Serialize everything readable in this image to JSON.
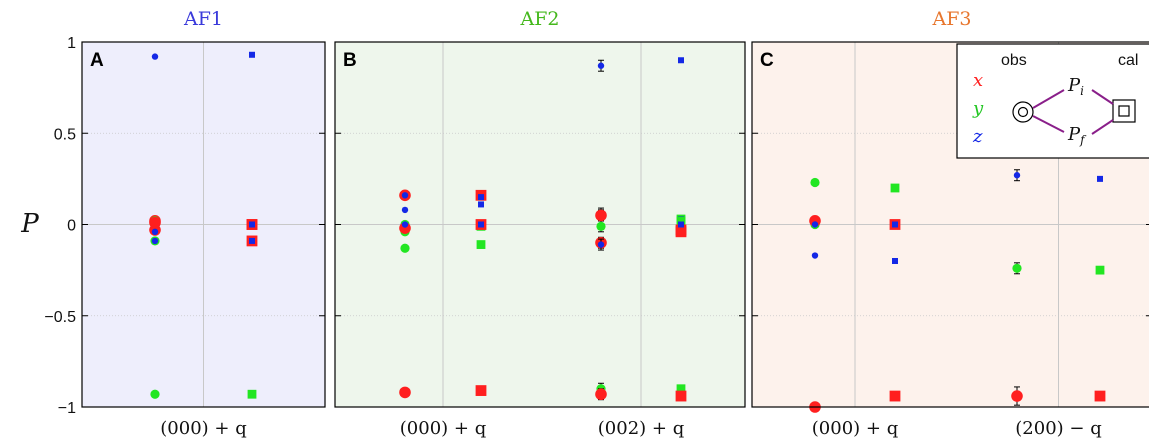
{
  "figure": {
    "ylabel": "P",
    "legend": {
      "obs": "obs",
      "cal": "cal",
      "x": "x",
      "y": "y",
      "z": "z",
      "pi": "P",
      "pi_sub": "i",
      "pf": "P",
      "pf_sub": "f"
    }
  },
  "chart_data": [
    {
      "type": "scatter",
      "panel": "A",
      "title": "AF1",
      "title_color": "#3a3adb",
      "background": "#eeeefc",
      "ylim": [
        -1,
        1
      ],
      "yticks": [
        1,
        0.5,
        0,
        -0.5,
        -1
      ],
      "ytick_labels": [
        "1",
        "0.5",
        "0",
        "−0.5",
        "−1"
      ],
      "groups": [
        {
          "label": "(000) + q",
          "obs": [
            {
              "x": 0.02,
              "y": -0.93,
              "z": 0.92,
              "xerr": 0.01,
              "yerr": 0.01,
              "zerr": 0.01
            },
            {
              "x": -0.03,
              "y": 0.02,
              "z": -0.04,
              "xerr": 0.01,
              "yerr": 0.01,
              "zerr": 0.01
            },
            {
              "x": 0.01,
              "y": -0.09,
              "z": -0.09,
              "xerr": 0.01,
              "yerr": 0.01,
              "zerr": 0.01
            }
          ],
          "cal": [
            {
              "x": 0.0,
              "y": -0.93,
              "z": 0.93
            },
            {
              "x": 0.0,
              "y": 0.0,
              "z": 0.0
            },
            {
              "x": -0.09,
              "y": -0.09,
              "z": -0.09
            }
          ]
        }
      ]
    },
    {
      "type": "scatter",
      "panel": "B",
      "title": "AF2",
      "title_color": "#44b81c",
      "background": "#eef6ec",
      "ylim": [
        -1,
        1
      ],
      "yticks": [
        1,
        0.5,
        0,
        -0.5,
        -1
      ],
      "ytick_labels": [
        "",
        "",
        "",
        "",
        ""
      ],
      "groups": [
        {
          "label": "(000) + q",
          "obs": [
            {
              "x": -0.92,
              "y": -0.13,
              "z": 0.08,
              "xerr": 0.01,
              "yerr": 0.01,
              "zerr": 0.01
            },
            {
              "x": 0.16,
              "y": 0.0,
              "z": 0.16,
              "xerr": 0.01,
              "yerr": 0.01,
              "zerr": 0.01
            },
            {
              "x": -0.02,
              "y": -0.04,
              "z": 0.0,
              "xerr": 0.01,
              "yerr": 0.01,
              "zerr": 0.01
            }
          ],
          "cal": [
            {
              "x": -0.91,
              "y": -0.11,
              "z": 0.11
            },
            {
              "x": 0.16,
              "y": -0.01,
              "z": 0.15
            },
            {
              "x": 0.0,
              "y": 0.0,
              "z": 0.0
            }
          ]
        },
        {
          "label": "(002) + q",
          "obs": [
            {
              "x": -0.93,
              "y": -0.9,
              "z": 0.87,
              "xerr": 0.03,
              "yerr": 0.03,
              "zerr": 0.03
            },
            {
              "x": -0.1,
              "y": -0.01,
              "z": 0.06,
              "xerr": 0.03,
              "yerr": 0.03,
              "zerr": 0.03
            },
            {
              "x": 0.05,
              "y": 0.05,
              "z": -0.11,
              "xerr": 0.03,
              "yerr": 0.03,
              "zerr": 0.03
            }
          ],
          "cal": [
            {
              "x": -0.94,
              "y": -0.9,
              "z": 0.9
            },
            {
              "x": -0.04,
              "y": 0.03,
              "z": 0.03
            },
            {
              "x": -0.03,
              "y": 0.02,
              "z": 0.0
            }
          ]
        }
      ]
    },
    {
      "type": "scatter",
      "panel": "C",
      "title": "AF3",
      "title_color": "#e8762d",
      "background": "#fdf2ec",
      "ylim": [
        -1,
        1
      ],
      "yticks": [
        1,
        0.5,
        0,
        -0.5,
        -1
      ],
      "ytick_labels": [
        "",
        "",
        "",
        "",
        ""
      ],
      "groups": [
        {
          "label": "(000) + q",
          "obs": [
            {
              "x": -1.0,
              "y": 0.23,
              "z": -0.17,
              "xerr": 0.01,
              "yerr": 0.01,
              "zerr": 0.01
            },
            {
              "x": 0.02,
              "y": 0.0,
              "z": 0.0,
              "xerr": 0.01,
              "yerr": 0.01,
              "zerr": 0.01
            }
          ],
          "cal": [
            {
              "x": -0.94,
              "y": 0.2,
              "z": -0.2
            },
            {
              "x": 0.0,
              "y": 0.0,
              "z": 0.0
            }
          ]
        },
        {
          "label": "(200) − q",
          "obs": [
            {
              "x": -0.94,
              "y": -0.24,
              "z": 0.27,
              "xerr": 0.05,
              "yerr": 0.03,
              "zerr": 0.03
            }
          ],
          "cal": [
            {
              "x": -0.94,
              "y": -0.25,
              "z": 0.25
            }
          ]
        }
      ]
    }
  ],
  "colors": {
    "x": "#ff1f1f",
    "y": "#22e622",
    "z": "#1428e6",
    "legend_lines": "#8a1f8a",
    "grid": "#c8c8c8"
  }
}
